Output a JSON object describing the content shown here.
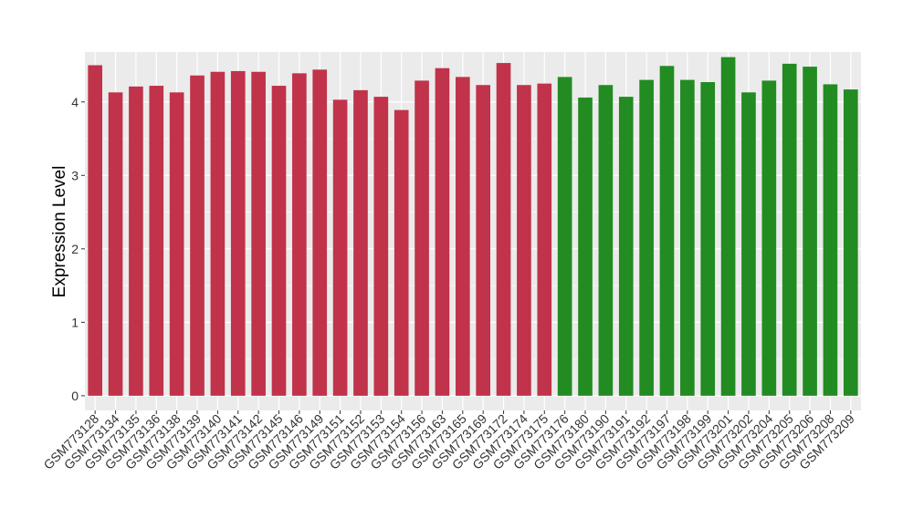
{
  "chart_data": {
    "type": "bar",
    "title": "",
    "xlabel": "",
    "ylabel": "Expression Level",
    "ylim": [
      -0.2,
      4.68
    ],
    "yticks": [
      0,
      1,
      2,
      3,
      4
    ],
    "grid": true,
    "legend": "none",
    "colors": {
      "group1": "#c0334a",
      "group2": "#228b22",
      "panel": "#ebebeb",
      "gridline": "#ffffff"
    },
    "categories": [
      "GSM773128",
      "GSM773134",
      "GSM773135",
      "GSM773136",
      "GSM773138",
      "GSM773139",
      "GSM773140",
      "GSM773141",
      "GSM773142",
      "GSM773145",
      "GSM773146",
      "GSM773149",
      "GSM773151",
      "GSM773152",
      "GSM773153",
      "GSM773154",
      "GSM773156",
      "GSM773163",
      "GSM773165",
      "GSM773169",
      "GSM773172",
      "GSM773174",
      "GSM773175",
      "GSM773176",
      "GSM773180",
      "GSM773190",
      "GSM773191",
      "GSM773192",
      "GSM773197",
      "GSM773198",
      "GSM773199",
      "GSM773201",
      "GSM773202",
      "GSM773204",
      "GSM773205",
      "GSM773206",
      "GSM773208",
      "GSM773209"
    ],
    "values": [
      4.5,
      4.13,
      4.21,
      4.22,
      4.13,
      4.36,
      4.41,
      4.42,
      4.41,
      4.22,
      4.39,
      4.44,
      4.03,
      4.16,
      4.07,
      3.89,
      4.29,
      4.46,
      4.34,
      4.23,
      4.53,
      4.23,
      4.25,
      4.34,
      4.06,
      4.23,
      4.07,
      4.3,
      4.49,
      4.3,
      4.27,
      4.61,
      4.13,
      4.29,
      4.52,
      4.48,
      4.24,
      4.17
    ],
    "groups": [
      "group1",
      "group1",
      "group1",
      "group1",
      "group1",
      "group1",
      "group1",
      "group1",
      "group1",
      "group1",
      "group1",
      "group1",
      "group1",
      "group1",
      "group1",
      "group1",
      "group1",
      "group1",
      "group1",
      "group1",
      "group1",
      "group1",
      "group1",
      "group2",
      "group2",
      "group2",
      "group2",
      "group2",
      "group2",
      "group2",
      "group2",
      "group2",
      "group2",
      "group2",
      "group2",
      "group2",
      "group2",
      "group2"
    ]
  }
}
